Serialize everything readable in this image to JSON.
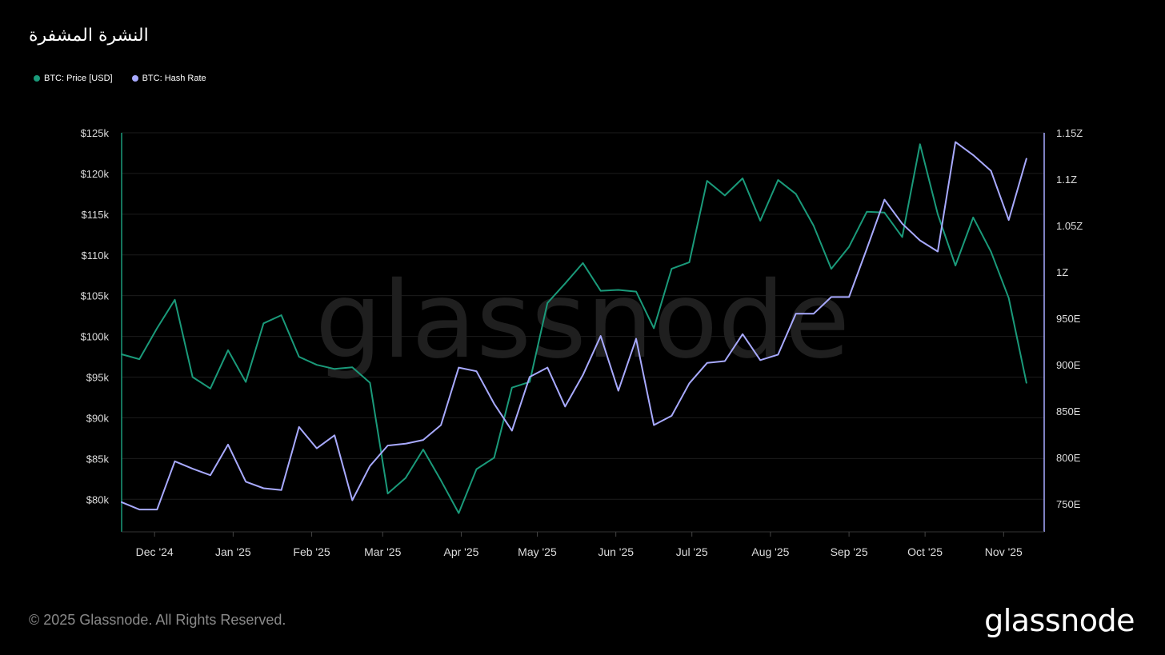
{
  "title": "النشرة المشفرة",
  "legend": {
    "price_label": "BTC: Price [USD]",
    "hash_label": "BTC: Hash Rate"
  },
  "colors": {
    "price": "#1a9a7a",
    "hash": "#a8aaff",
    "grid": "#1c1c1c",
    "axis_text": "#dddddd",
    "watermark": "#1f1f1f"
  },
  "watermark": "glassnode",
  "footer": {
    "copyright": "© 2025 Glassnode. All Rights Reserved.",
    "logo": "glassnode"
  },
  "chart_data": {
    "type": "line",
    "title": "النشرة المشفرة",
    "x_range": [
      "2024-11-18",
      "2025-11-17"
    ],
    "x_ticks": [
      {
        "date": "2024-12-01",
        "label": "Dec '24"
      },
      {
        "date": "2025-01-01",
        "label": "Jan '25"
      },
      {
        "date": "2025-02-01",
        "label": "Feb '25"
      },
      {
        "date": "2025-03-01",
        "label": "Mar '25"
      },
      {
        "date": "2025-04-01",
        "label": "Apr '25"
      },
      {
        "date": "2025-05-01",
        "label": "May '25"
      },
      {
        "date": "2025-06-01",
        "label": "Jun '25"
      },
      {
        "date": "2025-07-01",
        "label": "Jul '25"
      },
      {
        "date": "2025-08-01",
        "label": "Aug '25"
      },
      {
        "date": "2025-09-01",
        "label": "Sep '25"
      },
      {
        "date": "2025-10-01",
        "label": "Oct '25"
      },
      {
        "date": "2025-11-01",
        "label": "Nov '25"
      }
    ],
    "y_left": {
      "range": [
        76000,
        125000
      ],
      "ticks": [
        80000,
        85000,
        90000,
        95000,
        100000,
        105000,
        110000,
        115000,
        120000,
        125000
      ],
      "labels": [
        "$80k",
        "$85k",
        "$90k",
        "$95k",
        "$100k",
        "$105k",
        "$110k",
        "$115k",
        "$120k",
        "$125k"
      ]
    },
    "y_right": {
      "range": [
        720,
        1150
      ],
      "ticks": [
        750,
        800,
        850,
        900,
        950,
        1000,
        1050,
        1100,
        1150
      ],
      "labels": [
        "750E",
        "800E",
        "850E",
        "900E",
        "950E",
        "1Z",
        "1.05Z",
        "1.1Z",
        "1.15Z"
      ]
    },
    "series": [
      {
        "name": "BTC: Price [USD]",
        "axis": "left",
        "points": [
          [
            "2024-11-18",
            97800
          ],
          [
            "2024-11-25",
            97200
          ],
          [
            "2024-12-02",
            101000
          ],
          [
            "2024-12-09",
            104500
          ],
          [
            "2024-12-16",
            95000
          ],
          [
            "2024-12-23",
            93600
          ],
          [
            "2024-12-30",
            98300
          ],
          [
            "2025-01-06",
            94400
          ],
          [
            "2025-01-13",
            101600
          ],
          [
            "2025-01-20",
            102600
          ],
          [
            "2025-01-27",
            97500
          ],
          [
            "2025-02-03",
            96500
          ],
          [
            "2025-02-10",
            96000
          ],
          [
            "2025-02-17",
            96200
          ],
          [
            "2025-02-24",
            94300
          ],
          [
            "2025-03-03",
            80700
          ],
          [
            "2025-03-10",
            82600
          ],
          [
            "2025-03-17",
            86100
          ],
          [
            "2025-03-24",
            82300
          ],
          [
            "2025-03-31",
            78300
          ],
          [
            "2025-04-07",
            83700
          ],
          [
            "2025-04-14",
            85100
          ],
          [
            "2025-04-21",
            93700
          ],
          [
            "2025-04-28",
            94400
          ],
          [
            "2025-05-05",
            104100
          ],
          [
            "2025-05-12",
            106500
          ],
          [
            "2025-05-19",
            109000
          ],
          [
            "2025-05-26",
            105600
          ],
          [
            "2025-06-02",
            105700
          ],
          [
            "2025-06-09",
            105500
          ],
          [
            "2025-06-16",
            101000
          ],
          [
            "2025-06-23",
            108300
          ],
          [
            "2025-06-30",
            109100
          ],
          [
            "2025-07-07",
            119100
          ],
          [
            "2025-07-14",
            117300
          ],
          [
            "2025-07-21",
            119400
          ],
          [
            "2025-07-28",
            114200
          ],
          [
            "2025-08-04",
            119200
          ],
          [
            "2025-08-11",
            117500
          ],
          [
            "2025-08-18",
            113600
          ],
          [
            "2025-08-25",
            108300
          ],
          [
            "2025-09-01",
            111000
          ],
          [
            "2025-09-08",
            115300
          ],
          [
            "2025-09-15",
            115200
          ],
          [
            "2025-09-22",
            112200
          ],
          [
            "2025-09-29",
            123600
          ],
          [
            "2025-10-06",
            115000
          ],
          [
            "2025-10-13",
            108700
          ],
          [
            "2025-10-20",
            114600
          ],
          [
            "2025-10-27",
            110400
          ],
          [
            "2025-11-03",
            104700
          ],
          [
            "2025-11-10",
            94300
          ]
        ]
      },
      {
        "name": "BTC: Hash Rate",
        "axis": "right",
        "points": [
          [
            "2024-11-18",
            752
          ],
          [
            "2024-11-25",
            744
          ],
          [
            "2024-12-02",
            744
          ],
          [
            "2024-12-09",
            796
          ],
          [
            "2024-12-16",
            788
          ],
          [
            "2024-12-23",
            781
          ],
          [
            "2024-12-30",
            814
          ],
          [
            "2025-01-06",
            774
          ],
          [
            "2025-01-13",
            767
          ],
          [
            "2025-01-20",
            765
          ],
          [
            "2025-01-27",
            833
          ],
          [
            "2025-02-03",
            810
          ],
          [
            "2025-02-10",
            824
          ],
          [
            "2025-02-17",
            754
          ],
          [
            "2025-02-24",
            791
          ],
          [
            "2025-03-03",
            813
          ],
          [
            "2025-03-10",
            815
          ],
          [
            "2025-03-17",
            819
          ],
          [
            "2025-03-24",
            835
          ],
          [
            "2025-03-31",
            897
          ],
          [
            "2025-04-07",
            893
          ],
          [
            "2025-04-14",
            858
          ],
          [
            "2025-04-21",
            829
          ],
          [
            "2025-04-28",
            887
          ],
          [
            "2025-05-05",
            897
          ],
          [
            "2025-05-12",
            855
          ],
          [
            "2025-05-19",
            889
          ],
          [
            "2025-05-26",
            931
          ],
          [
            "2025-06-02",
            872
          ],
          [
            "2025-06-09",
            928
          ],
          [
            "2025-06-16",
            835
          ],
          [
            "2025-06-23",
            845
          ],
          [
            "2025-06-30",
            880
          ],
          [
            "2025-07-07",
            902
          ],
          [
            "2025-07-14",
            904
          ],
          [
            "2025-07-21",
            933
          ],
          [
            "2025-07-28",
            905
          ],
          [
            "2025-08-04",
            911
          ],
          [
            "2025-08-11",
            955
          ],
          [
            "2025-08-18",
            955
          ],
          [
            "2025-08-25",
            973
          ],
          [
            "2025-09-01",
            973
          ],
          [
            "2025-09-08",
            1025
          ],
          [
            "2025-09-15",
            1078
          ],
          [
            "2025-09-22",
            1052
          ],
          [
            "2025-09-29",
            1034
          ],
          [
            "2025-10-06",
            1022
          ],
          [
            "2025-10-13",
            1140
          ],
          [
            "2025-10-20",
            1126
          ],
          [
            "2025-10-27",
            1109
          ],
          [
            "2025-11-03",
            1056
          ],
          [
            "2025-11-10",
            1122
          ]
        ]
      }
    ],
    "grid": true,
    "legend_position": "top-left"
  }
}
